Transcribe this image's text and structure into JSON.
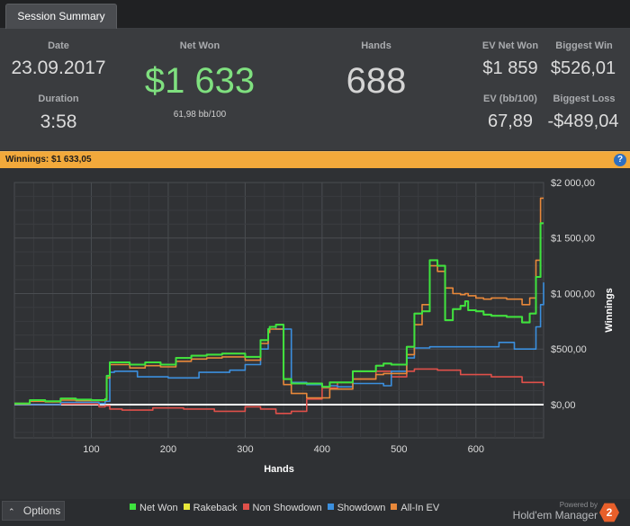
{
  "tab": {
    "label": "Session Summary"
  },
  "summary": {
    "date_label": "Date",
    "date_value": "23.09.2017",
    "duration_label": "Duration",
    "duration_value": "3:58",
    "net_won_label": "Net Won",
    "net_won_value": "$1 633",
    "net_won_sub": "61,98 bb/100",
    "hands_label": "Hands",
    "hands_value": "688",
    "ev_net_won_label": "EV Net Won",
    "ev_net_won_value": "$1 859",
    "biggest_win_label": "Biggest Win",
    "biggest_win_value": "$526,01",
    "ev_bb_label": "EV (bb/100)",
    "ev_bb_value": "67,89",
    "biggest_loss_label": "Biggest Loss",
    "biggest_loss_value": "-$489,04"
  },
  "winnings_bar": {
    "label": "Winnings:",
    "value": "$1 633,05",
    "help_icon": "?"
  },
  "colors": {
    "net_won": "#3ee33e",
    "rakeback": "#e8e83a",
    "non_showdown": "#e0504a",
    "showdown": "#3b8fde",
    "all_in_ev": "#e8883a",
    "accent_orange": "#f2a93b",
    "net_won_text": "#7fe07f"
  },
  "footer": {
    "options_label": "Options",
    "options_icon": "chevron-up-icon",
    "powered_by": "Powered by",
    "brand_name": "Hold'em Manager",
    "brand_badge": "2"
  },
  "chart_data": {
    "type": "line",
    "xlabel": "Hands",
    "ylabel": "Winnings",
    "xlim": [
      0,
      688
    ],
    "ylim": [
      -300,
      2000
    ],
    "x_ticks": [
      100,
      200,
      300,
      400,
      500,
      600
    ],
    "x_tick_labels": [
      "100",
      "200",
      "300",
      "400",
      "500",
      "600"
    ],
    "y_ticks": [
      0,
      500,
      1000,
      1500,
      2000
    ],
    "y_tick_labels": [
      "$0,00",
      "$500,00",
      "$1 000,00",
      "$1 500,00",
      "$2 000,00"
    ],
    "grid": true,
    "legend_position": "bottom",
    "series": [
      {
        "name": "Net Won",
        "x": [
          0,
          20,
          40,
          60,
          80,
          100,
          118,
          120,
          124,
          128,
          150,
          170,
          190,
          210,
          230,
          250,
          270,
          300,
          320,
          330,
          332,
          340,
          350,
          360,
          380,
          400,
          410,
          440,
          470,
          480,
          490,
          510,
          520,
          530,
          540,
          550,
          560,
          570,
          580,
          586,
          590,
          600,
          610,
          620,
          640,
          660,
          670,
          678,
          684,
          688
        ],
        "y": [
          10,
          40,
          30,
          55,
          45,
          40,
          50,
          260,
          380,
          380,
          360,
          380,
          360,
          420,
          440,
          450,
          460,
          430,
          580,
          680,
          700,
          720,
          230,
          190,
          190,
          160,
          200,
          300,
          350,
          370,
          360,
          520,
          820,
          840,
          1300,
          1250,
          760,
          860,
          890,
          930,
          850,
          840,
          810,
          800,
          790,
          740,
          820,
          1150,
          1633,
          1633
        ]
      },
      {
        "name": "Rakeback",
        "x": [
          0,
          20,
          40,
          60,
          80,
          100,
          118,
          120,
          124,
          128,
          150,
          170,
          190,
          210,
          230,
          250,
          270,
          300,
          320,
          330,
          332,
          340,
          350,
          360,
          380,
          400,
          410,
          440,
          470,
          480,
          490,
          510,
          520,
          530,
          540,
          550,
          560,
          570,
          580,
          586,
          590,
          600,
          610,
          620,
          640,
          660,
          670,
          678,
          684,
          688
        ],
        "y": [
          10,
          40,
          30,
          55,
          45,
          40,
          50,
          260,
          380,
          380,
          360,
          380,
          360,
          420,
          440,
          450,
          460,
          430,
          580,
          680,
          700,
          720,
          230,
          190,
          190,
          160,
          200,
          300,
          350,
          370,
          360,
          520,
          820,
          840,
          1300,
          1250,
          760,
          860,
          890,
          930,
          850,
          840,
          810,
          800,
          790,
          740,
          820,
          1150,
          1633,
          1633
        ]
      },
      {
        "name": "Non Showdown",
        "x": [
          0,
          60,
          110,
          118,
          124,
          140,
          180,
          220,
          260,
          300,
          320,
          340,
          360,
          380,
          400,
          420,
          440,
          470,
          490,
          510,
          520,
          550,
          580,
          620,
          660,
          688
        ],
        "y": [
          0,
          5,
          -20,
          -10,
          -40,
          -50,
          -30,
          -40,
          -60,
          -20,
          -40,
          -80,
          -60,
          50,
          150,
          200,
          230,
          300,
          250,
          300,
          320,
          310,
          270,
          250,
          200,
          170
        ]
      },
      {
        "name": "Showdown",
        "x": [
          0,
          60,
          110,
          118,
          124,
          130,
          160,
          200,
          240,
          280,
          300,
          320,
          330,
          332,
          340,
          360,
          380,
          400,
          410,
          420,
          440,
          460,
          480,
          490,
          510,
          520,
          540,
          560,
          580,
          600,
          630,
          650,
          678,
          684,
          688
        ],
        "y": [
          0,
          20,
          10,
          30,
          290,
          300,
          250,
          240,
          290,
          310,
          360,
          500,
          650,
          700,
          680,
          200,
          180,
          160,
          170,
          160,
          190,
          190,
          170,
          300,
          420,
          510,
          520,
          520,
          520,
          520,
          560,
          500,
          700,
          900,
          1100
        ]
      },
      {
        "name": "All-In EV",
        "x": [
          0,
          20,
          40,
          60,
          80,
          100,
          118,
          120,
          124,
          128,
          150,
          170,
          190,
          210,
          230,
          250,
          270,
          300,
          320,
          330,
          332,
          340,
          350,
          360,
          380,
          400,
          410,
          440,
          470,
          480,
          490,
          510,
          520,
          530,
          540,
          550,
          560,
          570,
          580,
          586,
          590,
          600,
          610,
          620,
          640,
          660,
          670,
          678,
          684,
          688
        ],
        "y": [
          5,
          30,
          25,
          40,
          35,
          35,
          40,
          240,
          360,
          360,
          330,
          350,
          340,
          390,
          410,
          420,
          430,
          400,
          550,
          650,
          680,
          680,
          180,
          100,
          60,
          60,
          140,
          230,
          270,
          280,
          280,
          450,
          720,
          900,
          1250,
          1200,
          1050,
          1000,
          990,
          1000,
          980,
          960,
          950,
          960,
          950,
          900,
          960,
          1300,
          1859,
          1859
        ]
      }
    ]
  }
}
